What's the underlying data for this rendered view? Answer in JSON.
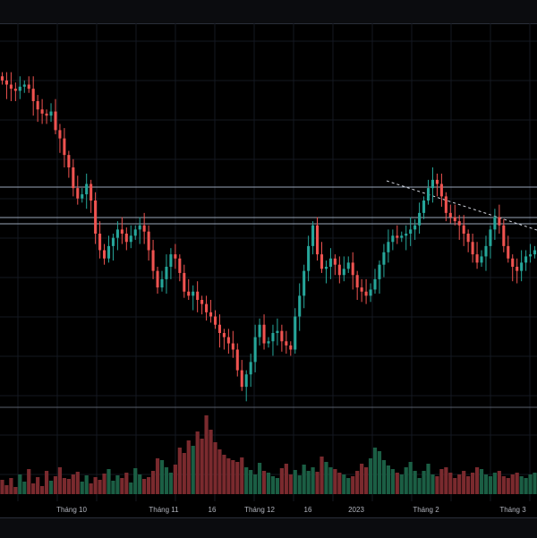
{
  "colors": {
    "background": "#000000",
    "grid": "#141821",
    "up": "#26a69a",
    "down": "#ef5350",
    "up_volume": "#1b5e44",
    "down_volume": "#7a2a2e",
    "level_line": "#9aa6b8",
    "trend_line": "#d1d4dc",
    "axis_text": "#b2b5be"
  },
  "chart_data": {
    "type": "candlestick",
    "x_axis_labels": [
      "Tháng 10",
      "Tháng 11",
      "16",
      "Tháng 12",
      "16",
      "2023",
      "Tháng 2",
      "Tháng 3"
    ],
    "horizontal_levels": [
      1,
      2,
      3
    ],
    "trend_line": true,
    "volume_panel": true,
    "price_range": [
      0,
      100
    ],
    "closes": [
      94,
      92,
      90,
      89,
      91,
      92,
      90,
      84,
      80,
      78,
      77,
      79,
      70,
      66,
      58,
      52,
      42,
      37,
      39,
      44,
      36,
      20,
      12,
      8,
      14,
      18,
      22,
      20,
      16,
      19,
      22,
      24,
      21,
      12,
      2,
      -6,
      -2,
      4,
      10,
      8,
      1,
      -8,
      -10,
      -8,
      -12,
      -14,
      -18,
      -20,
      -24,
      -28,
      -30,
      -33,
      -36,
      -46,
      -54,
      -48,
      -42,
      -30,
      -24,
      -33,
      -32,
      -28,
      -27,
      -32,
      -34,
      -36,
      -20,
      -10,
      2,
      14,
      24,
      10,
      3,
      4,
      8,
      5,
      0,
      3,
      6,
      0,
      -6,
      -8,
      -10,
      -7,
      -2,
      5,
      11,
      16,
      19,
      18,
      19,
      20,
      22,
      24,
      30,
      36,
      42,
      46,
      44,
      38,
      30,
      28,
      26,
      24,
      20,
      16,
      10,
      6,
      9,
      14,
      22,
      28,
      24,
      14,
      8,
      4,
      2,
      6,
      9,
      10,
      12
    ]
  },
  "volume_data": [
    16,
    10,
    18,
    8,
    22,
    14,
    28,
    12,
    19,
    9,
    26,
    15,
    20,
    30,
    18,
    17,
    22,
    25,
    14,
    21,
    12,
    19,
    16,
    23,
    28,
    15,
    21,
    18,
    24,
    13,
    29,
    22,
    17,
    19,
    26,
    40,
    38,
    30,
    24,
    33,
    52,
    46,
    60,
    54,
    70,
    62,
    88,
    72,
    58,
    50,
    44,
    40,
    38,
    36,
    41,
    30,
    27,
    22,
    35,
    26,
    24,
    20,
    18,
    29,
    34,
    22,
    27,
    21,
    33,
    26,
    30,
    25,
    42,
    36,
    30,
    28,
    24,
    22,
    18,
    20,
    26,
    34,
    30,
    40,
    52,
    48,
    38,
    32,
    28,
    24,
    22,
    30,
    36,
    26,
    18,
    26,
    34,
    22,
    20,
    28,
    30,
    24,
    18,
    22,
    26,
    20,
    24,
    30,
    28,
    22,
    20,
    24,
    26,
    20,
    18,
    22,
    24,
    20,
    18,
    22,
    24
  ]
}
